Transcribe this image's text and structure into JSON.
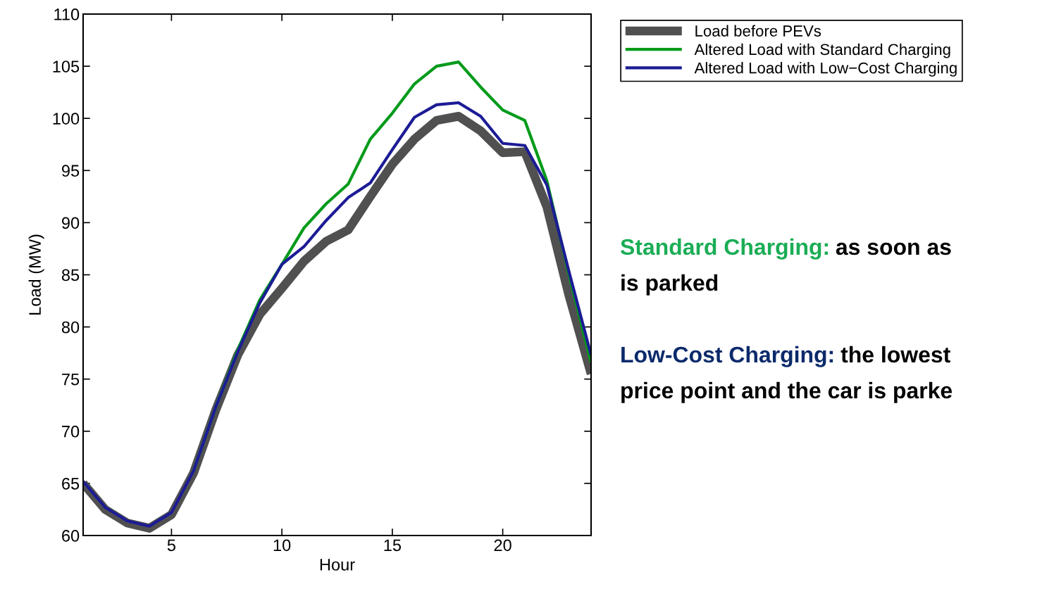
{
  "chart_data": {
    "type": "line",
    "xlabel": "Hour",
    "ylabel": "Load (MW)",
    "x": [
      1,
      2,
      3,
      4,
      5,
      6,
      7,
      8,
      9,
      10,
      11,
      12,
      13,
      14,
      15,
      16,
      17,
      18,
      19,
      20,
      21,
      22,
      23,
      24
    ],
    "xlim": [
      1,
      24
    ],
    "xticks": [
      5,
      10,
      15,
      20
    ],
    "ylim": [
      60,
      110
    ],
    "yticks": [
      60,
      65,
      70,
      75,
      80,
      85,
      90,
      95,
      100,
      105,
      110
    ],
    "grid": false,
    "legend": "top right",
    "marker": "none",
    "line_style": "solid",
    "series": [
      {
        "name": "Load before PEVs",
        "color": "#505050",
        "values": [
          65.0,
          62.5,
          61.2,
          60.7,
          62.0,
          66.0,
          72.0,
          77.3,
          81.2,
          83.7,
          86.3,
          88.2,
          89.3,
          92.5,
          95.6,
          98.0,
          99.8,
          100.2,
          98.8,
          96.7,
          96.8,
          91.5,
          83.0,
          75.5
        ]
      },
      {
        "name": "Altered Load with Standard Charging",
        "color": "#009a1a",
        "values": [
          null,
          null,
          null,
          null,
          null,
          66.2,
          72.3,
          77.8,
          82.6,
          86.0,
          89.5,
          91.8,
          93.7,
          98.0,
          100.5,
          103.3,
          105.0,
          105.4,
          103.0,
          100.8,
          99.8,
          94.0,
          85.0,
          76.6
        ]
      },
      {
        "name": "Altered Load with Low−Cost Charging",
        "color": "#1c1c96",
        "values": [
          65.2,
          62.7,
          61.4,
          60.9,
          62.2,
          66.2,
          72.3,
          77.6,
          82.3,
          86.0,
          87.7,
          90.2,
          92.4,
          93.8,
          97.0,
          100.1,
          101.3,
          101.5,
          100.2,
          97.6,
          97.4,
          93.6,
          85.3,
          77.3
        ]
      }
    ],
    "annotations": [
      "Standard Charging:",
      "as soon as",
      "is parked",
      "Low-Cost Charging:",
      "the lowest",
      "price point and the car is parke"
    ]
  }
}
